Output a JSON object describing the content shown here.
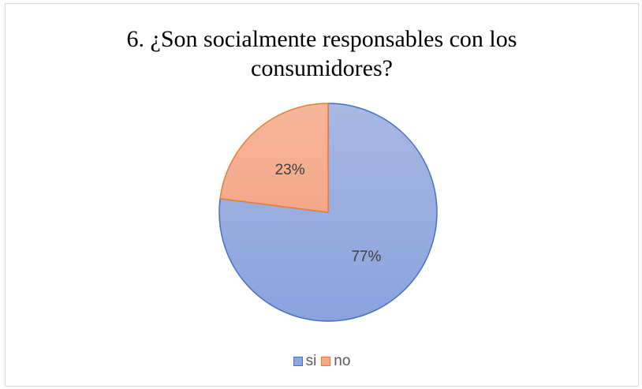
{
  "chart_data": {
    "type": "pie",
    "title_lines": [
      "6. ¿Son socialmente responsables con los",
      "consumidores?"
    ],
    "categories": [
      "si",
      "no"
    ],
    "values": [
      77,
      23
    ],
    "data_labels": [
      "77%",
      "23%"
    ],
    "colors": {
      "si_fill": "#8fa7dc",
      "si_border": "#4472c4",
      "no_fill": "#f4a98a",
      "no_border": "#ed7d31"
    },
    "legend": [
      "si",
      "no"
    ],
    "legend_position": "bottom"
  }
}
